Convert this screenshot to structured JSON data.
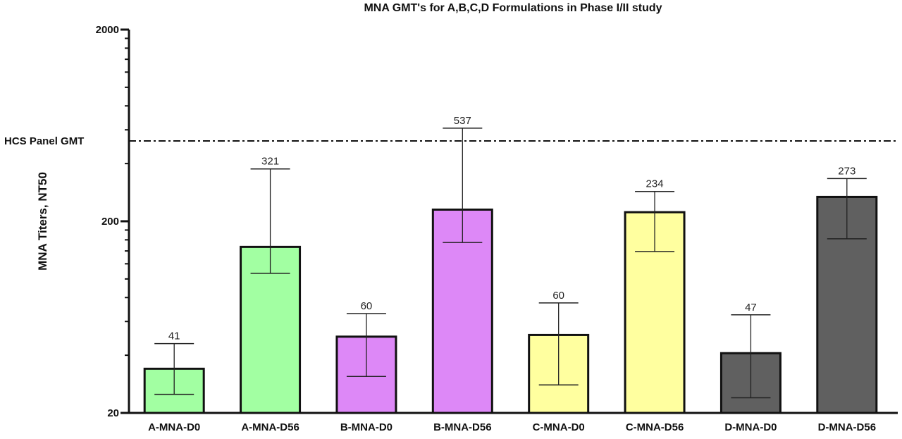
{
  "chart_data": {
    "type": "bar",
    "title": "MNA GMT's for A,B,C,D  Formulations in Phase I/II study",
    "ylabel": "MNA Titers, NT50",
    "yscale": "log",
    "ylim": [
      20,
      2000
    ],
    "yticks": [
      {
        "value": 20,
        "label": "20"
      },
      {
        "value": 200,
        "label": "200"
      },
      {
        "value": 2000,
        "label": "2000"
      }
    ],
    "categories": [
      "A-MNA-D0",
      "A-MNA-D56",
      "B-MNA-D0",
      "B-MNA-D56",
      "C-MNA-D0",
      "C-MNA-D56",
      "D-MNA-D0",
      "D-MNA-D56"
    ],
    "values": [
      41,
      321,
      60,
      537,
      60,
      234,
      47,
      273
    ],
    "value_labels": [
      "41",
      "321",
      "60",
      "537",
      "60",
      "234",
      "47",
      "273"
    ],
    "bar_heights_estimated": [
      34,
      147,
      50,
      230,
      51,
      223,
      41,
      268
    ],
    "error_low": [
      25,
      107,
      31,
      155,
      28,
      139,
      24,
      162
    ],
    "error_high": [
      46,
      375,
      66,
      612,
      75,
      286,
      65,
      334
    ],
    "colors": [
      "#a2ffa2",
      "#a2ffa2",
      "#dd88f7",
      "#dd88f7",
      "#ffff9f",
      "#ffff9f",
      "#606060",
      "#606060"
    ],
    "reference_line": {
      "label": "HCS Panel GMT",
      "value": 525,
      "style": "dash-dot"
    },
    "grid": false,
    "legend": "none"
  }
}
